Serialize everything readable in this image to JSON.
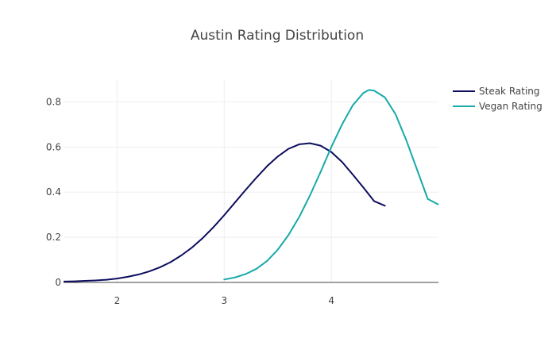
{
  "chart_data": {
    "type": "line",
    "title": "Austin Rating Distribution",
    "xlabel": "",
    "ylabel": "",
    "xlim": [
      1.5,
      5.0
    ],
    "ylim": [
      0,
      0.9
    ],
    "xticks": [
      2,
      3,
      4
    ],
    "xtick_labels": [
      "2",
      "3",
      "4"
    ],
    "yticks": [
      0,
      0.2,
      0.4,
      0.6,
      0.8
    ],
    "ytick_labels": [
      "0",
      "0.2",
      "0.4",
      "0.6",
      "0.8"
    ],
    "grid": true,
    "legend_position": "top-right",
    "series": [
      {
        "name": "Steak Rating",
        "color": "#0d0d5e",
        "x": [
          1.5,
          1.6,
          1.7,
          1.8,
          1.9,
          2.0,
          2.1,
          2.2,
          2.3,
          2.4,
          2.5,
          2.6,
          2.7,
          2.8,
          2.9,
          3.0,
          3.1,
          3.2,
          3.3,
          3.4,
          3.5,
          3.6,
          3.7,
          3.8,
          3.9,
          4.0,
          4.1,
          4.2,
          4.3,
          4.4,
          4.5
        ],
        "y": [
          0.004,
          0.005,
          0.007,
          0.009,
          0.012,
          0.017,
          0.025,
          0.035,
          0.049,
          0.067,
          0.09,
          0.12,
          0.155,
          0.197,
          0.245,
          0.298,
          0.354,
          0.41,
          0.464,
          0.515,
          0.558,
          0.592,
          0.612,
          0.617,
          0.606,
          0.578,
          0.534,
          0.478,
          0.42,
          0.36,
          0.34
        ]
      },
      {
        "name": "Vegan Rating",
        "color": "#17aaa9",
        "x": [
          3.0,
          3.1,
          3.2,
          3.3,
          3.4,
          3.5,
          3.6,
          3.7,
          3.8,
          3.9,
          4.0,
          4.1,
          4.2,
          4.3,
          4.35,
          4.4,
          4.5,
          4.6,
          4.7,
          4.8,
          4.9,
          5.0
        ],
        "y": [
          0.013,
          0.022,
          0.037,
          0.06,
          0.095,
          0.145,
          0.21,
          0.29,
          0.385,
          0.49,
          0.6,
          0.7,
          0.785,
          0.84,
          0.853,
          0.85,
          0.82,
          0.745,
          0.63,
          0.5,
          0.37,
          0.345
        ]
      }
    ]
  }
}
